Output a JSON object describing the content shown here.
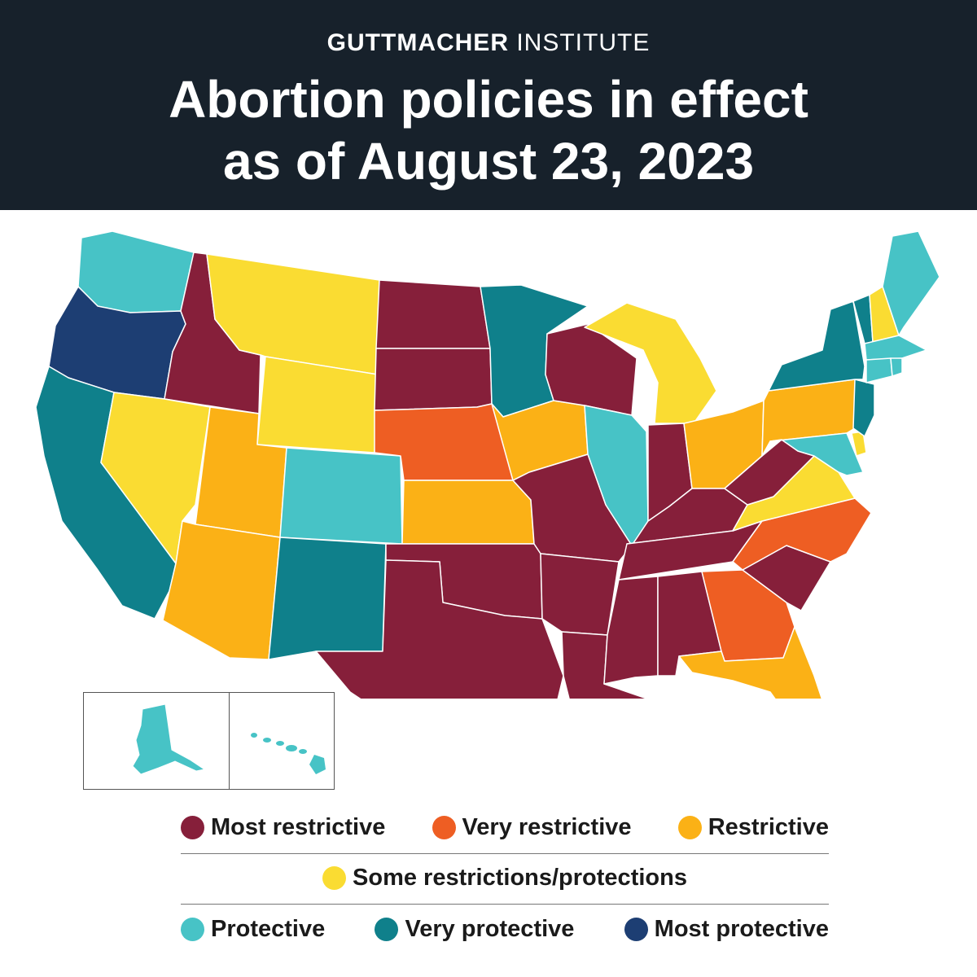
{
  "header": {
    "org_bold": "GUTTMACHER",
    "org_light": "INSTITUTE",
    "title_line1": "Abortion policies in effect",
    "title_line2": "as of August 23, 2023"
  },
  "colors": {
    "most_restrictive": "#861f3a",
    "very_restrictive": "#ee5e23",
    "restrictive": "#fbb116",
    "some": "#fadc32",
    "protective": "#47c3c6",
    "very_protective": "#0f808b",
    "most_protective": "#1d3e73"
  },
  "legend": {
    "most_restrictive": "Most restrictive",
    "very_restrictive": "Very restrictive",
    "restrictive": "Restrictive",
    "some": "Some restrictions/protections",
    "protective": "Protective",
    "very_protective": "Very protective",
    "most_protective": "Most protective"
  },
  "states": {
    "WA": "protective",
    "OR": "most_protective",
    "CA": "very_protective",
    "ID": "most_restrictive",
    "NV": "some",
    "MT": "some",
    "WY": "some",
    "UT": "restrictive",
    "AZ": "restrictive",
    "CO": "protective",
    "NM": "very_protective",
    "ND": "most_restrictive",
    "SD": "most_restrictive",
    "NE": "very_restrictive",
    "KS": "restrictive",
    "OK": "most_restrictive",
    "TX": "most_restrictive",
    "MN": "very_protective",
    "IA": "restrictive",
    "MO": "most_restrictive",
    "AR": "most_restrictive",
    "LA": "most_restrictive",
    "WI": "most_restrictive",
    "IL": "protective",
    "MI": "some",
    "IN": "most_restrictive",
    "OH": "restrictive",
    "KY": "most_restrictive",
    "TN": "most_restrictive",
    "MS": "most_restrictive",
    "AL": "most_restrictive",
    "GA": "very_restrictive",
    "FL": "restrictive",
    "SC": "most_restrictive",
    "NC": "very_restrictive",
    "VA": "some",
    "WV": "most_restrictive",
    "PA": "restrictive",
    "NY": "very_protective",
    "NJ": "very_protective",
    "DE": "some",
    "MD": "protective",
    "VT": "very_protective",
    "NH": "some",
    "ME": "protective",
    "MA": "protective",
    "CT": "protective",
    "RI": "protective",
    "AK": "protective",
    "HI": "protective"
  }
}
